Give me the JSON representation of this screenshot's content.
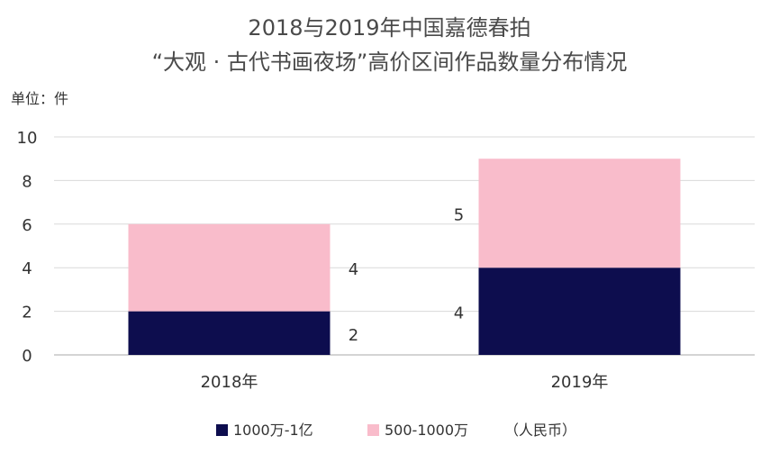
{
  "header": {
    "title_line1": "2018与2019年中国嘉德春拍",
    "title_line2": "“大观 · 古代书画夜场”高价区间作品数量分布情况",
    "unit_label": "单位：件"
  },
  "legend": {
    "items": [
      {
        "label": "1000万-1亿",
        "color": "#0d0d4e"
      },
      {
        "label": "500-1000万",
        "color": "#f9bccb"
      }
    ],
    "note": "（人民币）"
  },
  "chart_data": {
    "type": "bar",
    "stacked": true,
    "title": "2018与2019年中国嘉德春拍 “大观 · 古代书画夜场”高价区间作品数量分布情况",
    "ylabel": "单位：件",
    "xlabel": "",
    "categories": [
      "2018年",
      "2019年"
    ],
    "series": [
      {
        "name": "1000万-1亿",
        "values": [
          2,
          4
        ],
        "color": "#0d0d4e"
      },
      {
        "name": "500-1000万",
        "values": [
          4,
          5
        ],
        "color": "#f9bccb"
      }
    ],
    "ylim": [
      0,
      10
    ],
    "yticks": [
      0,
      2,
      4,
      6,
      8,
      10
    ],
    "grid": true,
    "legend_position": "bottom"
  }
}
